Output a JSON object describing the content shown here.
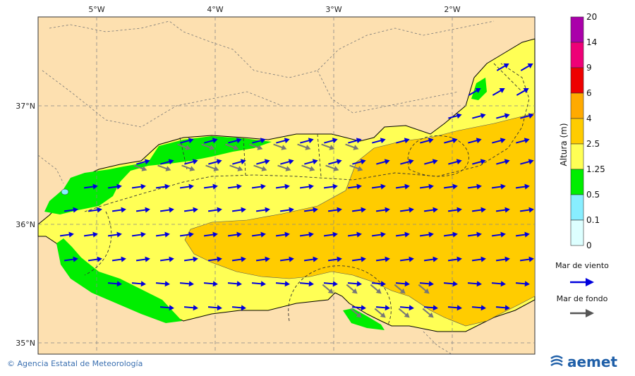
{
  "map": {
    "lon_labels": [
      "5°W",
      "4°W",
      "3°W",
      "2°W"
    ],
    "lat_labels": [
      "37°N",
      "36°N",
      "35°N"
    ],
    "colors": {
      "land": "#fde0b0",
      "band_0_5": "#00ee00",
      "band_1_25": "#ffff55",
      "band_2_5": "#ffcc00",
      "arrow_wind": "#0000dd",
      "arrow_swell": "#666666",
      "border": "#555555"
    }
  },
  "legend": {
    "title": "Altura (m)",
    "ticks": [
      "20",
      "14",
      "9",
      "6",
      "4",
      "2.5",
      "1.25",
      "0.5",
      "0.1",
      "0"
    ],
    "bands": [
      {
        "from": "14",
        "to": "20",
        "color": "#aa00aa"
      },
      {
        "from": "9",
        "to": "14",
        "color": "#ee0077"
      },
      {
        "from": "6",
        "to": "9",
        "color": "#ee0000"
      },
      {
        "from": "4",
        "to": "6",
        "color": "#ffaa00"
      },
      {
        "from": "2.5",
        "to": "4",
        "color": "#ffcc00"
      },
      {
        "from": "1.25",
        "to": "2.5",
        "color": "#ffff55"
      },
      {
        "from": "0.5",
        "to": "1.25",
        "color": "#00ee00"
      },
      {
        "from": "0.1",
        "to": "0.5",
        "color": "#88eeff"
      },
      {
        "from": "0",
        "to": "0.1",
        "color": "#ddffff"
      }
    ],
    "wind_label": "Mar de viento",
    "swell_label": "Mar de fondo"
  },
  "footer": {
    "copyright_symbol": "©",
    "credit": "Agencia Estatal de Meteorología",
    "logo_text": "aemet"
  }
}
